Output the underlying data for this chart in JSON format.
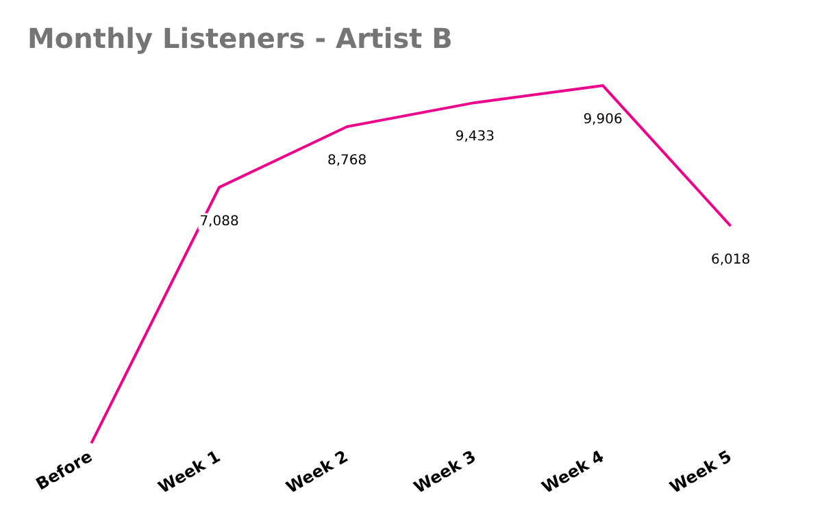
{
  "chart_data": {
    "type": "line",
    "title": "Monthly Listeners - Artist B",
    "categories": [
      "Before",
      "Week 1",
      "Week 2",
      "Week 3",
      "Week 4",
      "Week 5"
    ],
    "series": [
      {
        "color": "#ec008c",
        "values": [
          0,
          7088,
          8768,
          9433,
          9906,
          6018
        ],
        "value_labels": [
          null,
          "7,088",
          "8,768",
          "9,433",
          "9,906",
          "6,018"
        ]
      }
    ],
    "grid": false,
    "legend": false,
    "marker": "none",
    "line_style": "solid"
  }
}
